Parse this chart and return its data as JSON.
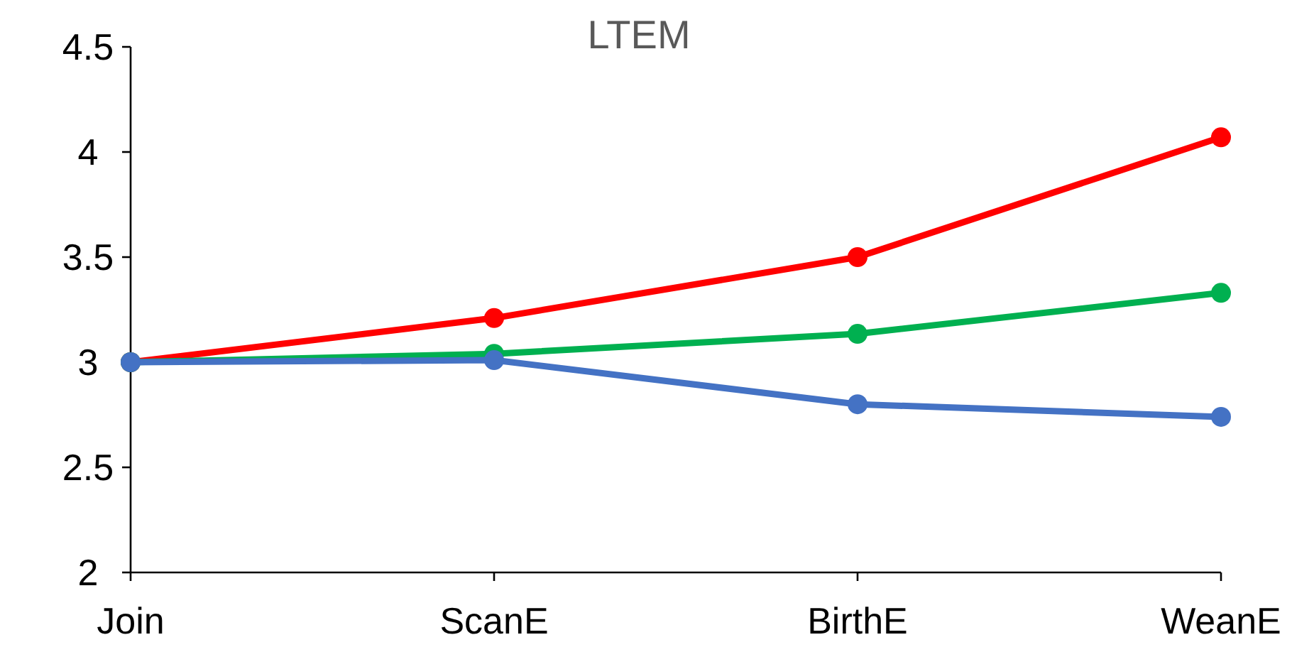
{
  "chart_data": {
    "type": "line",
    "title": "LTEM",
    "categories": [
      "Join",
      "ScanE",
      "BirthE",
      "WeanE"
    ],
    "series": [
      {
        "color": "#ff0000",
        "values": [
          3,
          3.21,
          3.5,
          4.07
        ]
      },
      {
        "color": "#00b050",
        "values": [
          3,
          3.04,
          3.135,
          3.33
        ]
      },
      {
        "color": "#4472c4",
        "values": [
          3,
          3.01,
          2.8,
          2.74
        ]
      }
    ],
    "ylim": [
      2,
      4.5
    ],
    "yticks": [
      2,
      2.5,
      3,
      3.5,
      4,
      4.5
    ],
    "grid": false,
    "marker": "circle",
    "line_style": "solid"
  }
}
